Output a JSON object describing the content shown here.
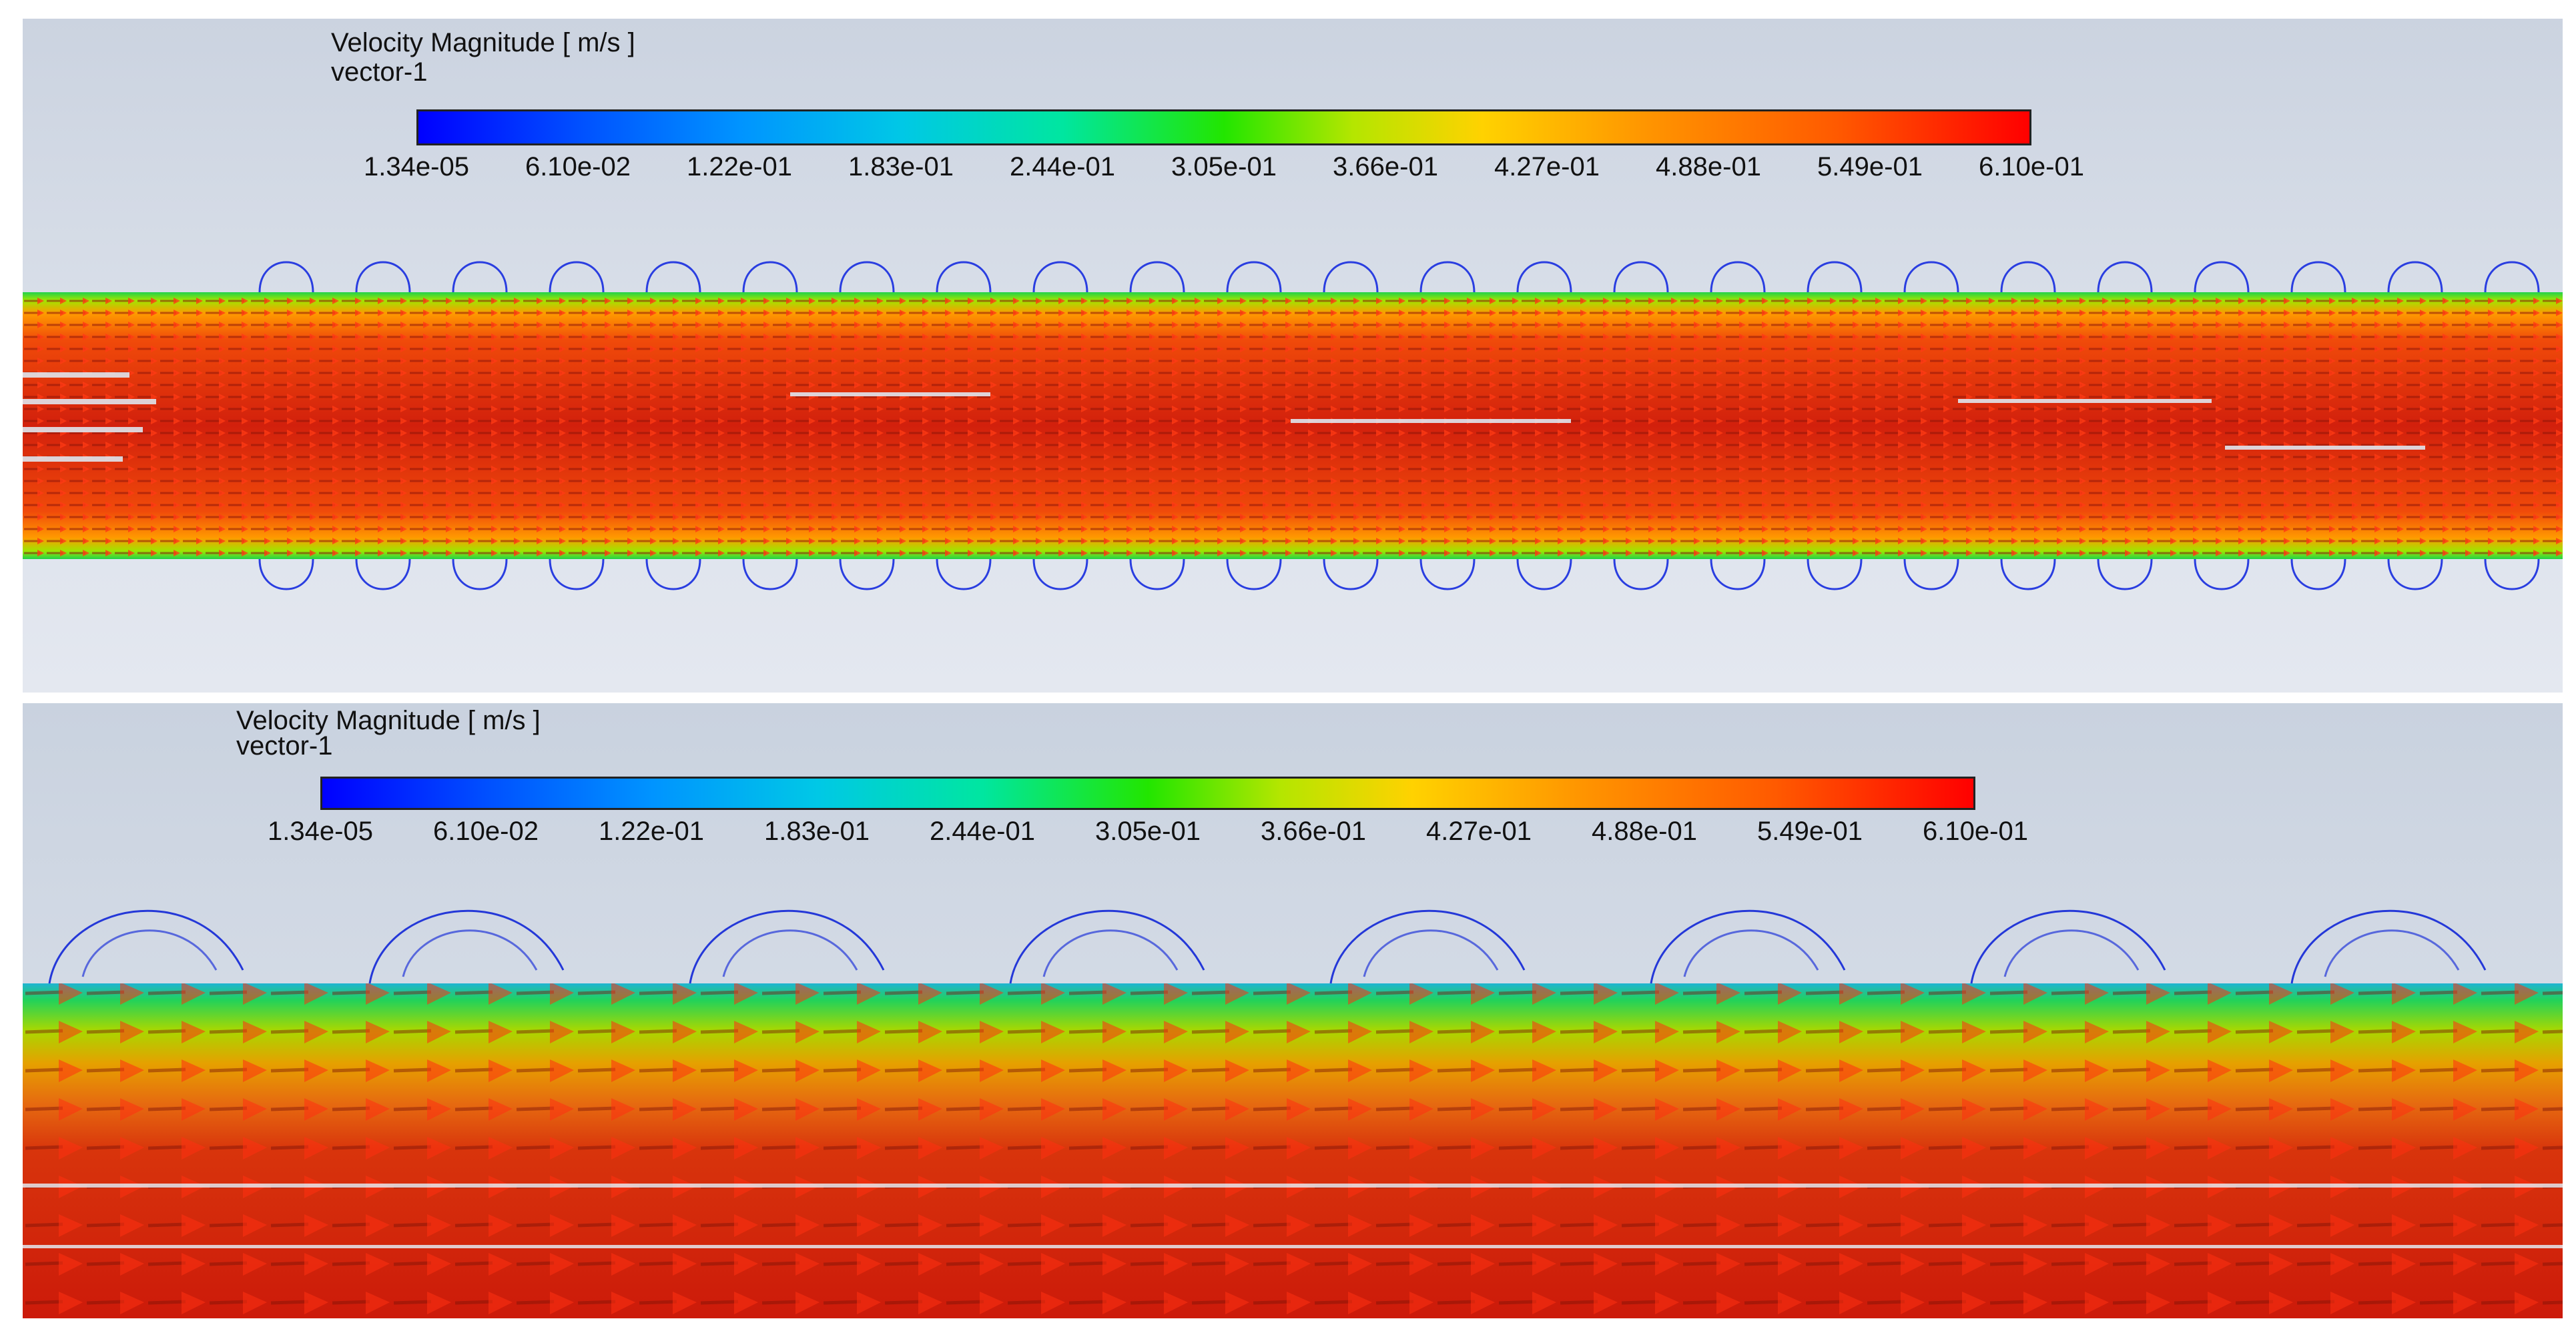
{
  "panels": [
    {
      "legend": {
        "title": "Velocity Magnitude [ m/s ]",
        "subtitle": "vector-1",
        "ticks": [
          "1.34e-05",
          "6.10e-02",
          "1.22e-01",
          "1.83e-01",
          "2.44e-01",
          "3.05e-01",
          "3.66e-01",
          "4.27e-01",
          "4.88e-01",
          "5.49e-01",
          "6.10e-01"
        ]
      }
    },
    {
      "legend": {
        "title": "Velocity Magnitude [ m/s ]",
        "subtitle": "vector-1",
        "ticks": [
          "1.34e-05",
          "6.10e-02",
          "1.22e-01",
          "1.83e-01",
          "2.44e-01",
          "3.05e-01",
          "3.66e-01",
          "4.27e-01",
          "4.88e-01",
          "5.49e-01",
          "6.10e-01"
        ]
      }
    }
  ],
  "colors": {
    "min": "#0000ff",
    "low": "#00c8e6",
    "mid": "#22e600",
    "high": "#ff9600",
    "max": "#ff0000"
  }
}
